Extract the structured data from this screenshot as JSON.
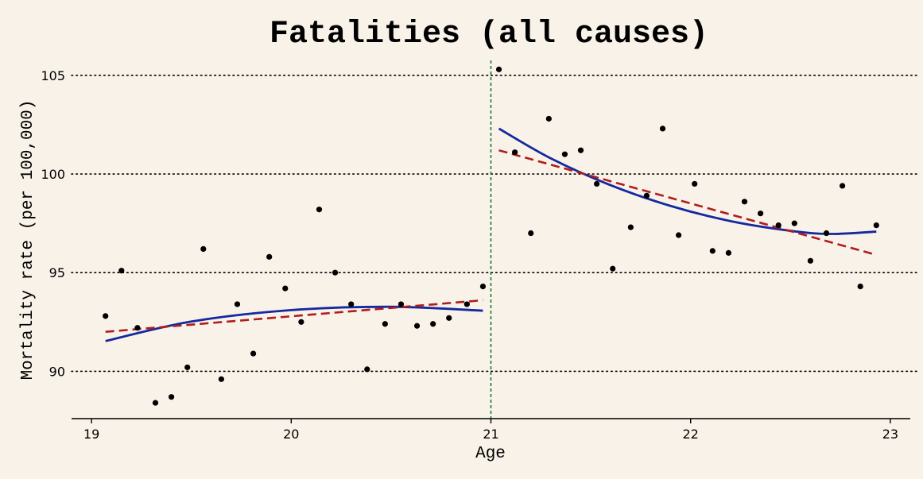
{
  "chart_data": {
    "type": "scatter",
    "title": "Fatalities (all causes)",
    "xlabel": "Age",
    "ylabel": "Mortality rate (per 100,000)",
    "xlim": [
      18.9,
      23.1
    ],
    "ylim": [
      87.6,
      106
    ],
    "xticks": [
      19,
      20,
      21,
      22,
      23
    ],
    "xtick_labels": [
      "19",
      "20",
      "21",
      "22",
      "23"
    ],
    "yticks": [
      90,
      95,
      100,
      105
    ],
    "ytick_labels": [
      "90",
      "95",
      "100",
      "105"
    ],
    "grid": "horizontal dotted",
    "cutoff": 21,
    "points": {
      "x": [
        19.07,
        19.15,
        19.23,
        19.32,
        19.4,
        19.48,
        19.56,
        19.65,
        19.73,
        19.81,
        19.89,
        19.97,
        20.05,
        20.14,
        20.22,
        20.3,
        20.38,
        20.47,
        20.55,
        20.63,
        20.71,
        20.79,
        20.88,
        20.96,
        21.04,
        21.12,
        21.2,
        21.29,
        21.37,
        21.45,
        21.53,
        21.61,
        21.7,
        21.78,
        21.86,
        21.94,
        22.02,
        22.11,
        22.19,
        22.27,
        22.35,
        22.44,
        22.52,
        22.6,
        22.68,
        22.76,
        22.85,
        22.93
      ],
      "y": [
        92.8,
        95.1,
        92.2,
        88.4,
        88.7,
        90.2,
        96.2,
        89.6,
        93.4,
        90.9,
        95.8,
        94.2,
        92.5,
        98.2,
        95.0,
        93.4,
        90.1,
        92.4,
        93.4,
        92.3,
        92.4,
        92.7,
        93.4,
        94.3,
        105.3,
        101.1,
        97.0,
        102.8,
        101.0,
        101.2,
        99.5,
        95.2,
        97.3,
        98.9,
        102.3,
        96.9,
        99.5,
        96.1,
        96.0,
        98.6,
        98.0,
        97.4,
        97.5,
        95.6,
        97.0,
        99.4,
        94.3,
        97.4
      ]
    },
    "series": [
      {
        "name": "quadratic fit (below 21)",
        "style": "solid",
        "color": "#1428a0",
        "x": [
          19.07,
          19.5,
          20.0,
          20.5,
          20.96
        ],
        "y": [
          91.53,
          92.52,
          93.1,
          93.27,
          93.07
        ]
      },
      {
        "name": "linear fit (below 21)",
        "style": "dashed",
        "color": "#b01c1c",
        "x": [
          19.07,
          20.96
        ],
        "y": [
          92.0,
          93.6
        ]
      },
      {
        "name": "quadratic fit (above 21)",
        "style": "solid",
        "color": "#1428a0",
        "x": [
          21.04,
          21.3,
          21.6,
          21.9,
          22.2,
          22.5,
          22.7,
          22.93
        ],
        "y": [
          102.3,
          100.79,
          99.43,
          98.38,
          97.61,
          97.12,
          96.96,
          97.08
        ]
      },
      {
        "name": "linear fit (above 21)",
        "style": "dashed",
        "color": "#b01c1c",
        "x": [
          21.04,
          22.93
        ],
        "y": [
          101.2,
          95.9
        ]
      }
    ],
    "colors": {
      "points": "#000000",
      "cutoff": "#1a7a2e",
      "grid": "#000000",
      "axis": "#000000"
    }
  }
}
